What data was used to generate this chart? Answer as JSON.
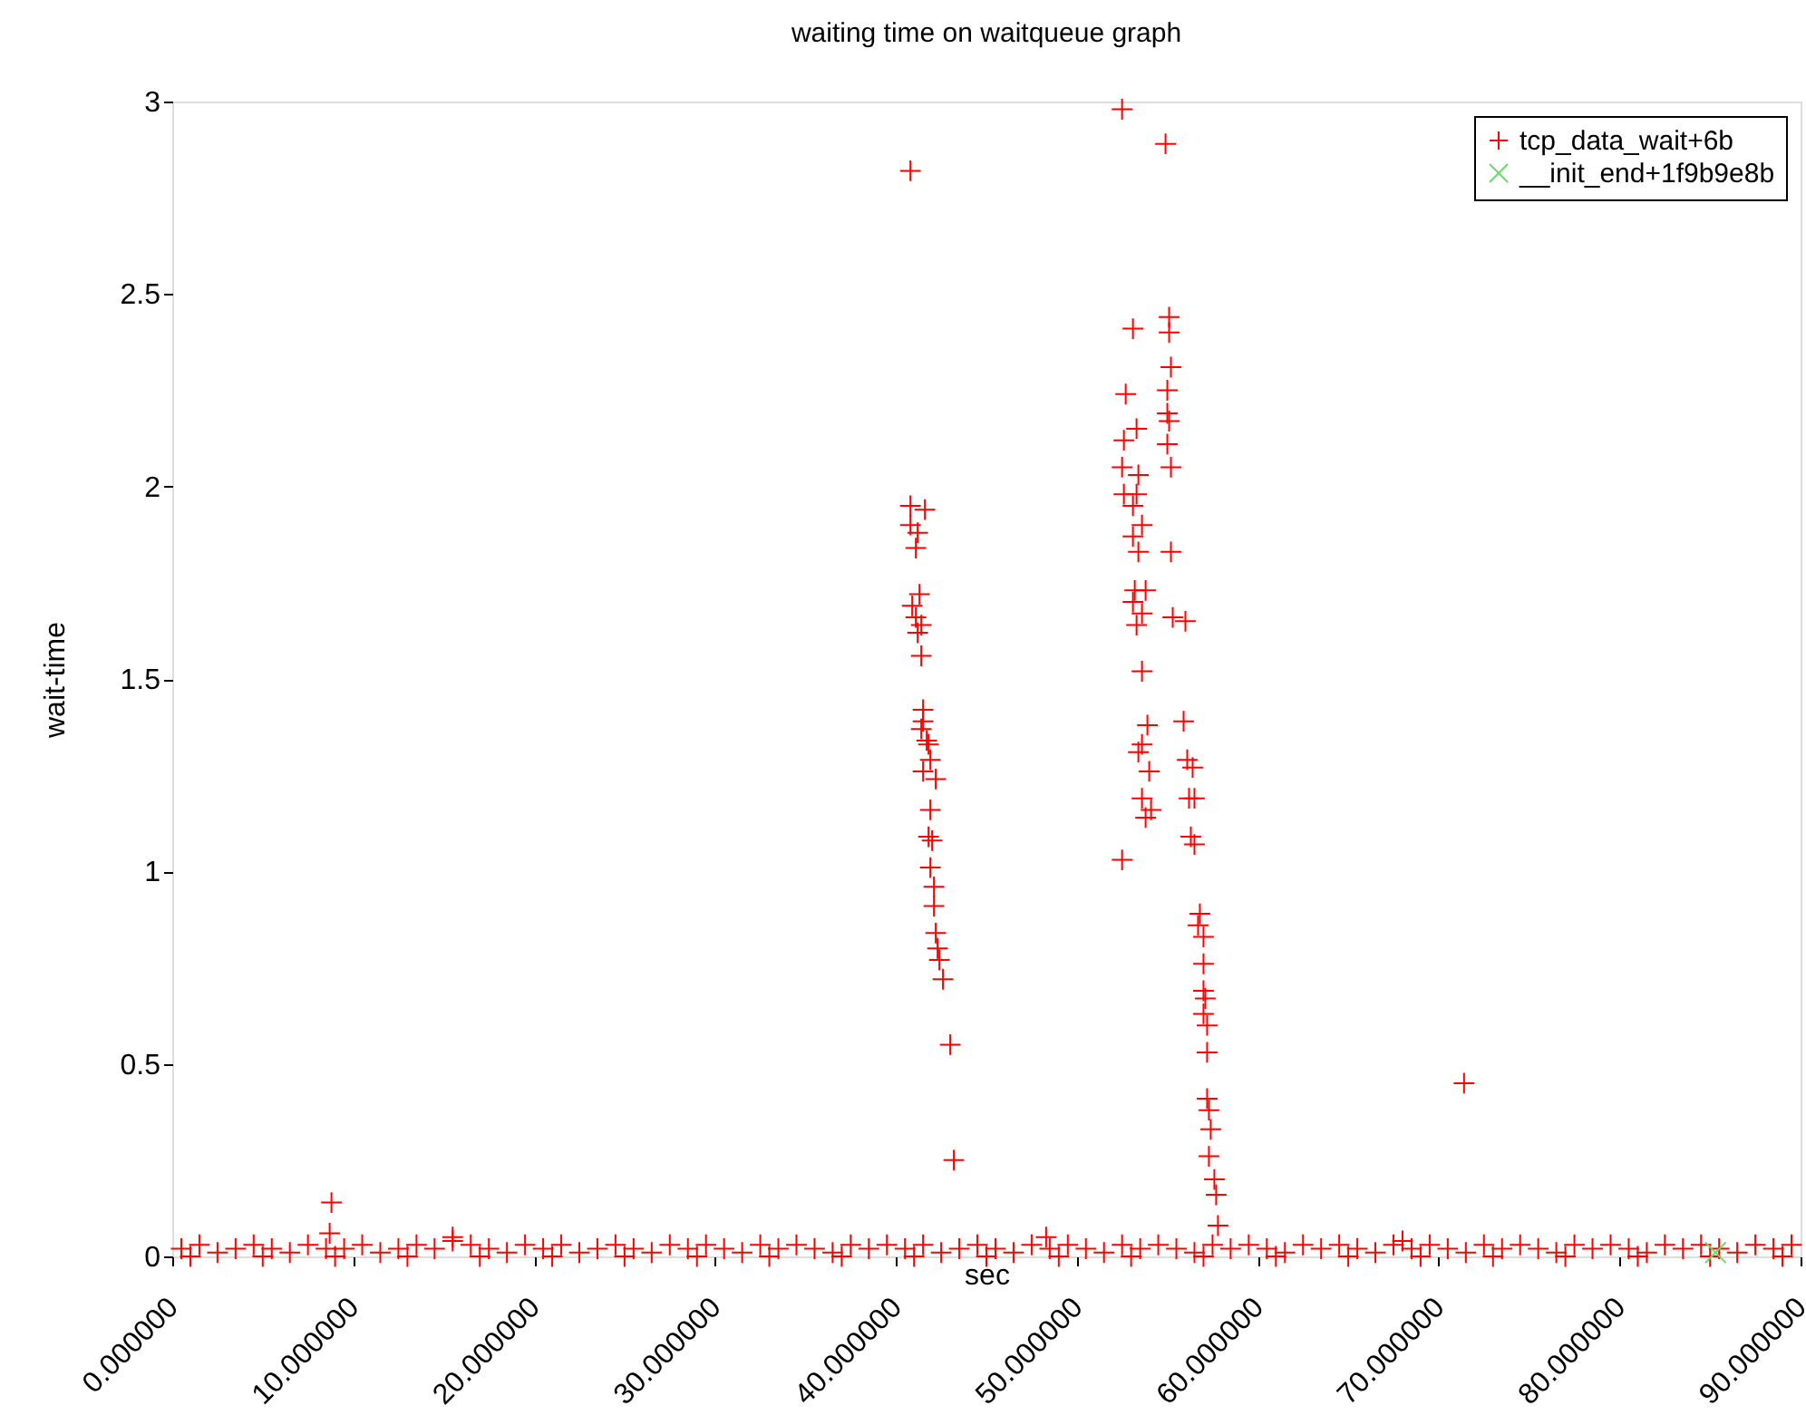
{
  "chart_data": {
    "type": "scatter",
    "title": "waiting time on waitqueue graph",
    "xlabel": "sec",
    "ylabel": "wait-time",
    "xlim": [
      0,
      90
    ],
    "ylim": [
      0,
      3
    ],
    "xticks": [
      {
        "value": 0,
        "label": "0.000000"
      },
      {
        "value": 10,
        "label": "10.000000"
      },
      {
        "value": 20,
        "label": "20.000000"
      },
      {
        "value": 30,
        "label": "30.000000"
      },
      {
        "value": 40,
        "label": "40.000000"
      },
      {
        "value": 50,
        "label": "50.000000"
      },
      {
        "value": 60,
        "label": "60.000000"
      },
      {
        "value": 70,
        "label": "70.000000"
      },
      {
        "value": 80,
        "label": "80.000000"
      },
      {
        "value": 90,
        "label": "90.000000"
      }
    ],
    "yticks": [
      0,
      0.5,
      1,
      1.5,
      2,
      2.5,
      3
    ],
    "legend": "top right",
    "grid": false,
    "series": [
      {
        "name": "tcp_data_wait+6b",
        "color": "#ff0000",
        "marker": "cross",
        "x": [
          0.5,
          1.5,
          2.5,
          3.5,
          4.5,
          5.5,
          6.5,
          7.5,
          8.5,
          9.5,
          10.5,
          11.5,
          12.5,
          13.5,
          14.5,
          15.5,
          16.5,
          17.5,
          18.5,
          19.5,
          20.5,
          21.5,
          22.5,
          23.5,
          24.5,
          25.5,
          26.5,
          27.5,
          28.5,
          29.5,
          30.5,
          31.5,
          32.5,
          33.5,
          34.5,
          35.5,
          36.5,
          37.5,
          38.5,
          39.5,
          40.5,
          41.5,
          42.5,
          43.5,
          44.5,
          45.5,
          46.5,
          47.5,
          48.5,
          49.5,
          50.5,
          51.5,
          52.5,
          53.5,
          54.5,
          55.5,
          56.5,
          57.5,
          58.5,
          59.5,
          60.5,
          61.5,
          62.5,
          63.5,
          64.5,
          65.5,
          66.5,
          67.5,
          68.5,
          69.5,
          70.5,
          71.5,
          72.5,
          73.5,
          74.5,
          75.5,
          76.5,
          77.5,
          78.5,
          79.5,
          80.5,
          81.5,
          82.5,
          83.5,
          84.5,
          85.5,
          86.5,
          87.5,
          88.5,
          89.5,
          1.0,
          5.0,
          9.0,
          13.0,
          17.0,
          21.0,
          25.0,
          29.0,
          33.0,
          37.0,
          41.0,
          45.0,
          49.0,
          53.0,
          57.0,
          61.0,
          65.0,
          69.0,
          73.0,
          77.0,
          81.0,
          85.0,
          89.0,
          15.5,
          48.3,
          68.0,
          8.8,
          8.7,
          40.8,
          40.8,
          41.6,
          40.8,
          41.2,
          41.1,
          41.3,
          40.9,
          41.1,
          41.4,
          41.2,
          41.4,
          41.5,
          41.5,
          41.4,
          41.7,
          41.8,
          41.9,
          41.5,
          42.2,
          41.9,
          41.8,
          42.0,
          41.9,
          42.1,
          42.1,
          42.2,
          42.3,
          42.4,
          42.6,
          43.0,
          43.2,
          52.5,
          54.9,
          53.1,
          55.1,
          55.1,
          55.2,
          52.7,
          55.0,
          53.3,
          55.0,
          55.1,
          52.6,
          52.5,
          55.0,
          55.2,
          52.6,
          53.4,
          53.3,
          53.1,
          53.6,
          53.1,
          53.4,
          55.2,
          53.2,
          53.1,
          53.8,
          53.6,
          53.3,
          55.3,
          56.0,
          53.6,
          53.9,
          53.6,
          55.9,
          53.4,
          54.0,
          56.1,
          56.4,
          53.6,
          54.1,
          53.8,
          56.2,
          56.5,
          56.3,
          56.5,
          52.5,
          56.8,
          56.7,
          57.0,
          57.0,
          57.0,
          57.1,
          57.0,
          57.2,
          57.2,
          57.2,
          57.3,
          57.4,
          57.3,
          57.6,
          57.7,
          57.8,
          71.4
        ],
        "values": [
          0.02,
          0.03,
          0.01,
          0.02,
          0.03,
          0.02,
          0.01,
          0.03,
          0.02,
          0.02,
          0.03,
          0.01,
          0.02,
          0.03,
          0.02,
          0.04,
          0.03,
          0.02,
          0.01,
          0.03,
          0.02,
          0.03,
          0.01,
          0.02,
          0.03,
          0.02,
          0.01,
          0.03,
          0.02,
          0.03,
          0.02,
          0.01,
          0.03,
          0.02,
          0.03,
          0.02,
          0.01,
          0.03,
          0.02,
          0.03,
          0.02,
          0.03,
          0.01,
          0.02,
          0.03,
          0.02,
          0.01,
          0.03,
          0.02,
          0.03,
          0.02,
          0.01,
          0.03,
          0.02,
          0.03,
          0.02,
          0.01,
          0.03,
          0.02,
          0.03,
          0.02,
          0.01,
          0.03,
          0.02,
          0.03,
          0.02,
          0.01,
          0.03,
          0.02,
          0.03,
          0.02,
          0.01,
          0.03,
          0.02,
          0.03,
          0.02,
          0.01,
          0.03,
          0.02,
          0.03,
          0.02,
          0.01,
          0.03,
          0.02,
          0.03,
          0.02,
          0.01,
          0.03,
          0.02,
          0.03,
          0.0,
          0.0,
          0.0,
          0.0,
          0.0,
          0.0,
          0.0,
          0.0,
          0.0,
          0.0,
          0.0,
          0.0,
          0.0,
          0.0,
          0.0,
          0.0,
          0.0,
          0.0,
          0.0,
          0.0,
          0.0,
          0.0,
          0.0,
          0.05,
          0.05,
          0.04,
          0.14,
          0.06,
          2.82,
          1.95,
          1.94,
          1.9,
          1.88,
          1.84,
          1.72,
          1.69,
          1.66,
          1.64,
          1.62,
          1.56,
          1.42,
          1.39,
          1.37,
          1.34,
          1.33,
          1.29,
          1.26,
          1.24,
          1.16,
          1.09,
          1.08,
          1.01,
          0.96,
          0.91,
          0.84,
          0.8,
          0.77,
          0.72,
          0.55,
          0.25,
          2.98,
          2.89,
          2.41,
          2.44,
          2.4,
          2.31,
          2.24,
          2.25,
          2.15,
          2.19,
          2.17,
          2.12,
          2.05,
          2.11,
          2.05,
          1.98,
          2.03,
          1.98,
          1.95,
          1.9,
          1.87,
          1.83,
          1.83,
          1.73,
          1.7,
          1.73,
          1.67,
          1.64,
          1.66,
          1.65,
          1.52,
          1.38,
          1.33,
          1.39,
          1.31,
          1.26,
          1.29,
          1.27,
          1.19,
          1.16,
          1.14,
          1.19,
          1.19,
          1.09,
          1.07,
          1.03,
          0.89,
          0.86,
          0.83,
          0.76,
          0.69,
          0.67,
          0.63,
          0.6,
          0.53,
          0.41,
          0.38,
          0.33,
          0.26,
          0.2,
          0.16,
          0.08,
          0.45
        ]
      },
      {
        "name": "__init_end+1f9b9e8b",
        "color": "#66dd66",
        "marker": "x",
        "x": [
          85.3
        ],
        "values": [
          0.01
        ]
      }
    ]
  }
}
